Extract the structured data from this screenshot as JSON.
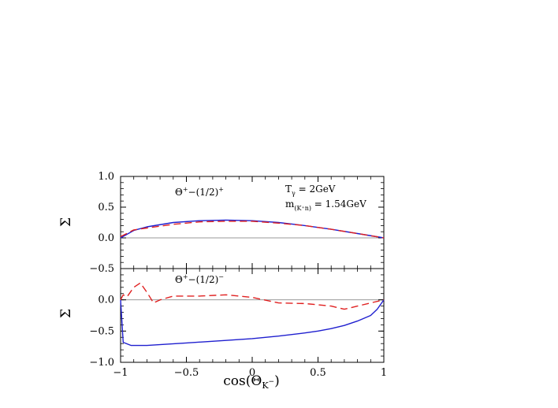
{
  "chart_data": [
    {
      "type": "line",
      "panel": "top",
      "annotation_parts": {
        "base": "Θ",
        "sup1": "+",
        "mid": "−(1/2)",
        "sup2": "+"
      },
      "params": {
        "t_base": "T",
        "t_sub": "γ",
        "t_rest": " = 2GeV",
        "m_base": "m",
        "m_sub": "(K⁺n)",
        "m_rest": " = 1.54GeV"
      },
      "ylabel": "Σ",
      "xlim": [
        -1,
        1
      ],
      "ylim": [
        -0.5,
        1.0
      ],
      "y_ticks": [
        "1.0",
        "0.5",
        "0.0",
        "−0.5"
      ],
      "y_tick_values": [
        1.0,
        0.5,
        0.0,
        -0.5
      ],
      "series": [
        {
          "style": "solid",
          "color": "#1f1fcf",
          "x": [
            -1,
            -0.9,
            -0.8,
            -0.6,
            -0.4,
            -0.2,
            0,
            0.2,
            0.4,
            0.6,
            0.8,
            1
          ],
          "y": [
            0.0,
            0.12,
            0.18,
            0.25,
            0.28,
            0.29,
            0.28,
            0.25,
            0.2,
            0.14,
            0.07,
            0.0
          ]
        },
        {
          "style": "dashed",
          "color": "#e02020",
          "x": [
            -1,
            -0.9,
            -0.8,
            -0.6,
            -0.4,
            -0.2,
            0,
            0.2,
            0.4,
            0.6,
            0.8,
            1
          ],
          "y": [
            0.02,
            0.13,
            0.16,
            0.22,
            0.26,
            0.27,
            0.27,
            0.24,
            0.2,
            0.14,
            0.07,
            0.0
          ]
        }
      ]
    },
    {
      "type": "line",
      "panel": "bottom",
      "annotation_parts": {
        "base": "Θ",
        "sup1": "+",
        "mid": "−(1/2)",
        "sup2": "−"
      },
      "ylabel": "Σ",
      "xlabel_parts": {
        "pre": "cos(Θ",
        "sub": "K",
        "subsup": "−",
        "post": ")"
      },
      "xlim": [
        -1,
        1
      ],
      "ylim": [
        -1.0,
        0.5
      ],
      "y_ticks": [
        "0.0",
        "−0.5",
        "−1.0"
      ],
      "y_tick_values": [
        0.0,
        -0.5,
        -1.0
      ],
      "x_ticks": [
        "−1",
        "−0.5",
        "0",
        "0.5",
        "1"
      ],
      "x_tick_values": [
        -1,
        -0.5,
        0,
        0.5,
        1
      ],
      "series": [
        {
          "style": "solid",
          "color": "#1f1fcf",
          "x": [
            -1,
            -0.98,
            -0.92,
            -0.8,
            -0.5,
            -0.2,
            0,
            0.2,
            0.4,
            0.5,
            0.6,
            0.7,
            0.8,
            0.9,
            0.95,
            1
          ],
          "y": [
            0.0,
            -0.68,
            -0.73,
            -0.73,
            -0.69,
            -0.65,
            -0.62,
            -0.58,
            -0.53,
            -0.5,
            -0.46,
            -0.41,
            -0.34,
            -0.25,
            -0.15,
            0.0
          ]
        },
        {
          "style": "dashed",
          "color": "#e02020",
          "x": [
            -1,
            -0.98,
            -0.95,
            -0.9,
            -0.85,
            -0.8,
            -0.75,
            -0.7,
            -0.6,
            -0.4,
            -0.2,
            0,
            0.2,
            0.4,
            0.6,
            0.7,
            0.8,
            0.9,
            1
          ],
          "y": [
            0.0,
            0.08,
            0.05,
            0.2,
            0.27,
            0.12,
            -0.05,
            0.0,
            0.06,
            0.06,
            0.08,
            0.04,
            -0.05,
            -0.06,
            -0.1,
            -0.15,
            -0.1,
            -0.05,
            0.0
          ]
        }
      ]
    }
  ]
}
